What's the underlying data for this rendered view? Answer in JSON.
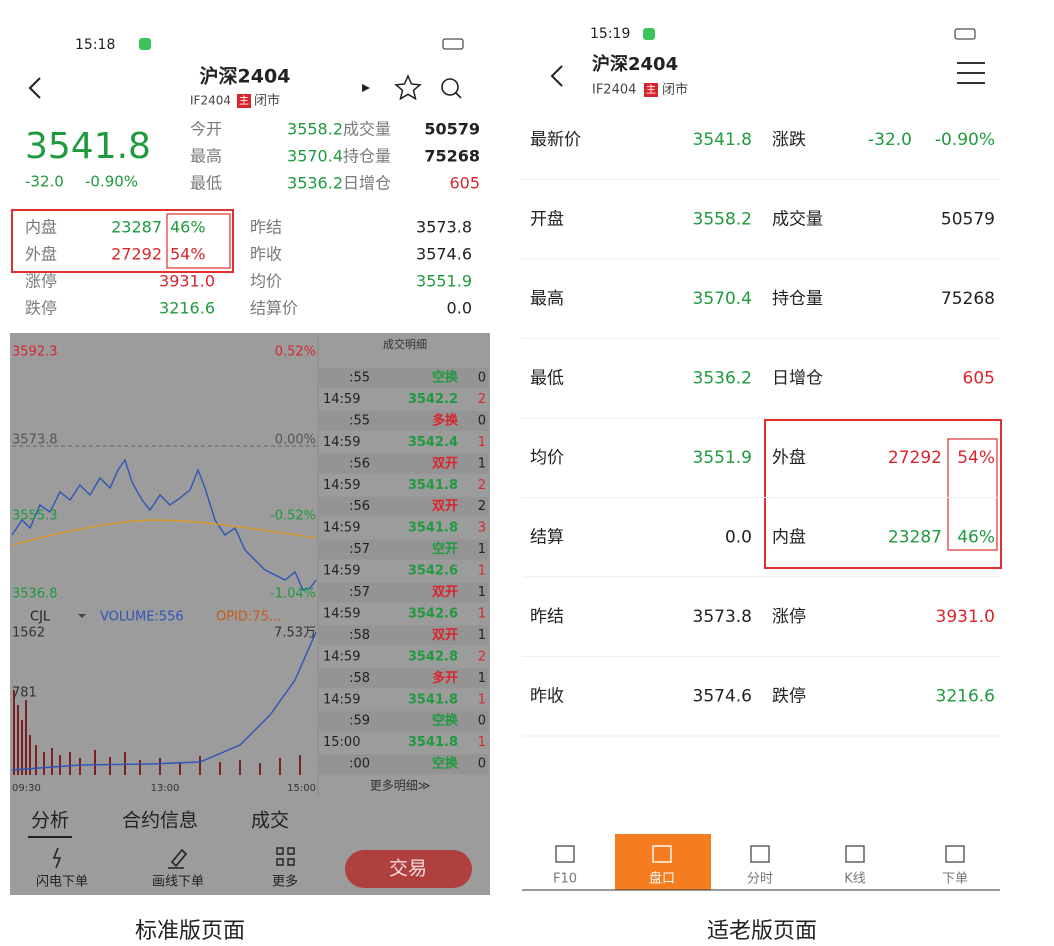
{
  "left": {
    "status_time": "15:18",
    "header": {
      "title": "沪深2404",
      "code": "IF2404",
      "tag": "主",
      "state": "闭市"
    },
    "quote": {
      "price": "3541.8",
      "change": "-32.0",
      "change_pct": "-0.90%"
    },
    "stats": [
      {
        "label": "今开",
        "value": "3558.2",
        "label2": "成交量",
        "value2": "50579"
      },
      {
        "label": "最高",
        "value": "3570.4",
        "label2": "持仓量",
        "value2": "75268"
      },
      {
        "label": "最低",
        "value": "3536.2",
        "label2": "日增仓",
        "value2": "605"
      }
    ],
    "book": [
      {
        "label": "内盘",
        "value": "23287",
        "pct": "46%"
      },
      {
        "label": "外盘",
        "value": "27292",
        "pct": "54%"
      }
    ],
    "limits": [
      {
        "label": "涨停",
        "value": "3931.0"
      },
      {
        "label": "跌停",
        "value": "3216.6"
      }
    ],
    "prev": [
      {
        "label": "昨结",
        "value": "3573.8"
      },
      {
        "label": "昨收",
        "value": "3574.6"
      },
      {
        "label": "均价",
        "value": "3551.9"
      },
      {
        "label": "结算价",
        "value": "0.0"
      }
    ],
    "chart": {
      "price_labels": [
        "3592.3",
        "3573.8",
        "3555.3",
        "3536.8"
      ],
      "pct_labels": [
        "0.52%",
        "0.00%",
        "-0.52%",
        "-1.04%"
      ],
      "indicator": "CJL",
      "volume": "VOLUME:556",
      "opid": "OPID:75...",
      "vol_labels": [
        "1562",
        "781"
      ],
      "oi_label": "7.53万",
      "times": [
        "09:30",
        "13:00",
        "15:00"
      ]
    },
    "trades": {
      "title": "成交明细",
      "rows": [
        [
          ":55",
          "空换",
          "0"
        ],
        [
          "14:59",
          "3542.2",
          "2"
        ],
        [
          ":55",
          "多换",
          "0"
        ],
        [
          "14:59",
          "3542.4",
          "1"
        ],
        [
          ":56",
          "双开",
          "1"
        ],
        [
          "14:59",
          "3541.8",
          "2"
        ],
        [
          ":56",
          "双开",
          "2"
        ],
        [
          "14:59",
          "3541.8",
          "3"
        ],
        [
          ":57",
          "空开",
          "1"
        ],
        [
          "14:59",
          "3542.6",
          "1"
        ],
        [
          ":57",
          "双开",
          "1"
        ],
        [
          "14:59",
          "3542.6",
          "1"
        ],
        [
          ":58",
          "双开",
          "1"
        ],
        [
          "14:59",
          "3542.8",
          "2"
        ],
        [
          ":58",
          "多开",
          "1"
        ],
        [
          "14:59",
          "3541.8",
          "1"
        ],
        [
          ":59",
          "空换",
          "0"
        ],
        [
          "15:00",
          "3541.8",
          "1"
        ],
        [
          ":00",
          "空换",
          "0"
        ]
      ],
      "more": "更多明细≫"
    },
    "tabs": [
      "分析",
      "合约信息",
      "成交"
    ],
    "tools": [
      "闪电下单",
      "画线下单",
      "更多"
    ],
    "trade_button": "交易"
  },
  "right": {
    "status_time": "15:19",
    "header": {
      "title": "沪深2404",
      "code": "IF2404",
      "tag": "主",
      "state": "闭市"
    },
    "rows": [
      {
        "label": "最新价",
        "value": "3541.8",
        "label2": "涨跌",
        "value2": "-32.0",
        "pct": "-0.90%"
      },
      {
        "label": "开盘",
        "value": "3558.2",
        "label2": "成交量",
        "value2": "50579"
      },
      {
        "label": "最高",
        "value": "3570.4",
        "label2": "持仓量",
        "value2": "75268"
      },
      {
        "label": "最低",
        "value": "3536.2",
        "label2": "日增仓",
        "value2": "605"
      },
      {
        "label": "均价",
        "value": "3551.9",
        "label2": "外盘",
        "value2": "27292",
        "pct": "54%"
      },
      {
        "label": "结算",
        "value": "0.0",
        "label2": "内盘",
        "value2": "23287",
        "pct": "46%"
      },
      {
        "label": "昨结",
        "value": "3573.8",
        "label2": "涨停",
        "value2": "3931.0"
      },
      {
        "label": "昨收",
        "value": "3574.6",
        "label2": "跌停",
        "value2": "3216.6"
      }
    ],
    "nav": [
      "F10",
      "盘口",
      "分时",
      "K线",
      "下单"
    ]
  },
  "captions": [
    "标准版页面",
    "适老版页面"
  ]
}
